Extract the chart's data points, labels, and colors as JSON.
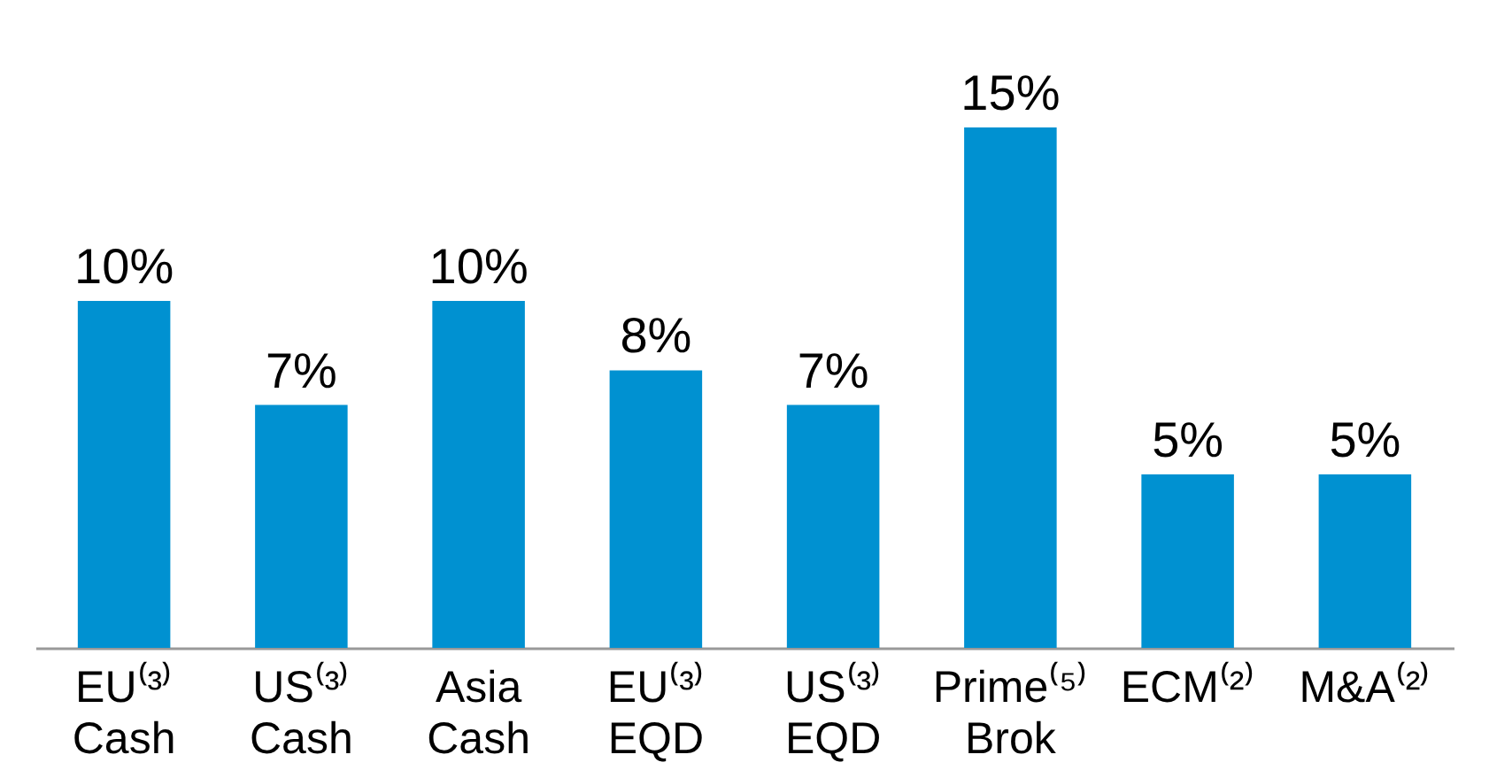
{
  "chart_data": {
    "type": "bar",
    "categories": [
      "EU⁽³⁾\nCash",
      "US⁽³⁾\nCash",
      "Asia\nCash",
      "EU⁽³⁾\nEQD",
      "US⁽³⁾\nEQD",
      "Prime⁽⁵⁾\nBrok",
      "ECM⁽²⁾",
      "M&A⁽²⁾"
    ],
    "values": [
      10,
      7,
      10,
      8,
      7,
      15,
      5,
      5
    ],
    "value_labels": [
      "10%",
      "7%",
      "10%",
      "8%",
      "7%",
      "15%",
      "5%",
      "5%"
    ],
    "color": "#0091d1"
  }
}
